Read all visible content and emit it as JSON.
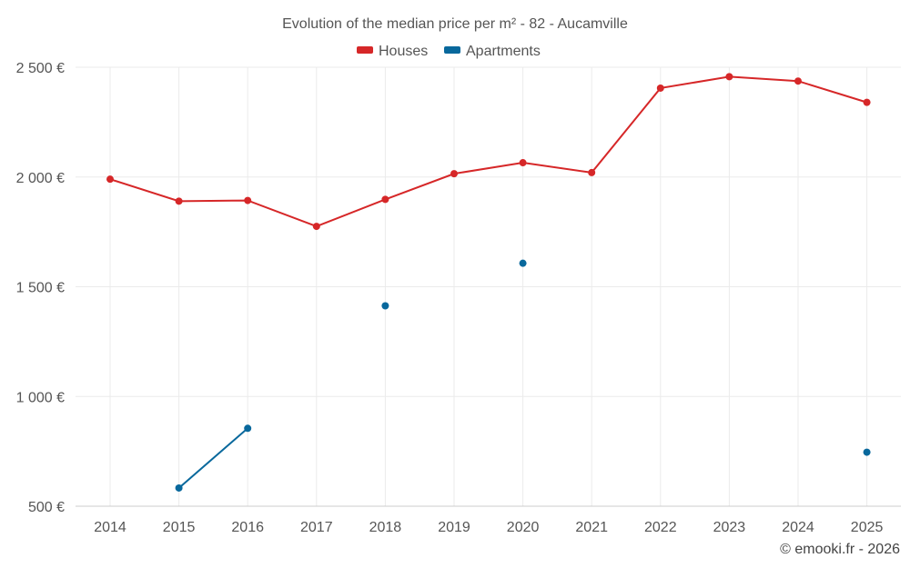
{
  "chart_data": {
    "type": "line",
    "title": "Evolution of the median price per m² - 82 - Aucamville",
    "categories": [
      "2014",
      "2015",
      "2016",
      "2017",
      "2018",
      "2019",
      "2020",
      "2021",
      "2022",
      "2023",
      "2024",
      "2025"
    ],
    "y_ticks": [
      500,
      1000,
      1500,
      2000,
      2500
    ],
    "y_tick_labels": [
      "500 €",
      "1 000 €",
      "1 500 €",
      "2 000 €",
      "2 500 €"
    ],
    "ylim": [
      500,
      2500
    ],
    "grid": true,
    "legend_position": "top-center",
    "series": [
      {
        "name": "Houses",
        "color": "#d62728",
        "values": [
          1990,
          1890,
          1893,
          1775,
          1898,
          2015,
          2065,
          2020,
          2405,
          2457,
          2437,
          2340
        ]
      },
      {
        "name": "Apartments",
        "color": "#08689c",
        "values": [
          null,
          583,
          855,
          null,
          1413,
          null,
          1607,
          null,
          null,
          null,
          null,
          746
        ]
      }
    ]
  },
  "credit": "© emooki.fr - 2026"
}
